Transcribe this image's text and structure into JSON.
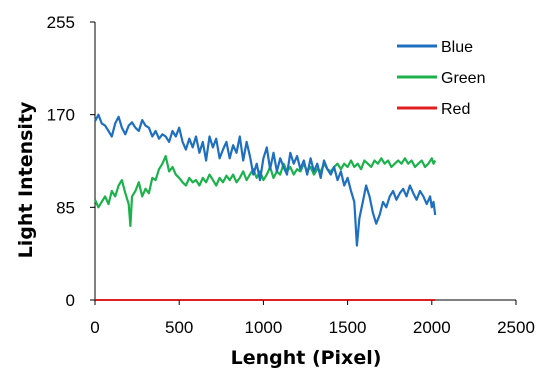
{
  "chart_data": {
    "type": "line",
    "title": "",
    "xlabel": "Lenght (Pixel)",
    "ylabel": "Light Intensity",
    "xlim": [
      0,
      2500
    ],
    "ylim": [
      0,
      255
    ],
    "x_ticks": [
      "0",
      "500",
      "1000",
      "1500",
      "2000",
      "2500"
    ],
    "y_ticks": [
      "0",
      "85",
      "170",
      "255"
    ],
    "grid": false,
    "legend_position": "top-right",
    "series": [
      {
        "name": "Blue",
        "color": "#1f6fc0",
        "points": [
          [
            0,
            164
          ],
          [
            20,
            170
          ],
          [
            40,
            162
          ],
          [
            60,
            160
          ],
          [
            80,
            155
          ],
          [
            100,
            150
          ],
          [
            120,
            162
          ],
          [
            140,
            168
          ],
          [
            160,
            158
          ],
          [
            180,
            152
          ],
          [
            200,
            160
          ],
          [
            220,
            163
          ],
          [
            240,
            158
          ],
          [
            260,
            155
          ],
          [
            280,
            165
          ],
          [
            300,
            160
          ],
          [
            320,
            158
          ],
          [
            340,
            150
          ],
          [
            360,
            155
          ],
          [
            380,
            148
          ],
          [
            400,
            152
          ],
          [
            420,
            150
          ],
          [
            440,
            145
          ],
          [
            460,
            155
          ],
          [
            480,
            150
          ],
          [
            500,
            158
          ],
          [
            520,
            145
          ],
          [
            540,
            138
          ],
          [
            560,
            148
          ],
          [
            580,
            140
          ],
          [
            600,
            150
          ],
          [
            620,
            135
          ],
          [
            640,
            145
          ],
          [
            660,
            128
          ],
          [
            680,
            150
          ],
          [
            700,
            140
          ],
          [
            720,
            148
          ],
          [
            740,
            130
          ],
          [
            760,
            138
          ],
          [
            780,
            145
          ],
          [
            800,
            130
          ],
          [
            820,
            142
          ],
          [
            840,
            135
          ],
          [
            860,
            150
          ],
          [
            880,
            128
          ],
          [
            900,
            145
          ],
          [
            920,
            132
          ],
          [
            940,
            115
          ],
          [
            960,
            125
          ],
          [
            980,
            110
          ],
          [
            1000,
            130
          ],
          [
            1020,
            140
          ],
          [
            1040,
            120
          ],
          [
            1060,
            135
          ],
          [
            1080,
            118
          ],
          [
            1100,
            130
          ],
          [
            1120,
            122
          ],
          [
            1140,
            115
          ],
          [
            1160,
            135
          ],
          [
            1180,
            125
          ],
          [
            1200,
            132
          ],
          [
            1220,
            120
          ],
          [
            1240,
            128
          ],
          [
            1260,
            115
          ],
          [
            1280,
            130
          ],
          [
            1300,
            118
          ],
          [
            1320,
            125
          ],
          [
            1340,
            112
          ],
          [
            1360,
            128
          ],
          [
            1380,
            120
          ],
          [
            1400,
            115
          ],
          [
            1420,
            122
          ],
          [
            1440,
            110
          ],
          [
            1460,
            118
          ],
          [
            1480,
            105
          ],
          [
            1500,
            112
          ],
          [
            1520,
            100
          ],
          [
            1540,
            90
          ],
          [
            1555,
            50
          ],
          [
            1570,
            75
          ],
          [
            1590,
            90
          ],
          [
            1610,
            105
          ],
          [
            1630,
            95
          ],
          [
            1650,
            80
          ],
          [
            1670,
            70
          ],
          [
            1690,
            78
          ],
          [
            1710,
            90
          ],
          [
            1730,
            85
          ],
          [
            1750,
            95
          ],
          [
            1770,
            100
          ],
          [
            1790,
            92
          ],
          [
            1810,
            98
          ],
          [
            1830,
            102
          ],
          [
            1850,
            95
          ],
          [
            1870,
            105
          ],
          [
            1890,
            98
          ],
          [
            1910,
            92
          ],
          [
            1930,
            100
          ],
          [
            1950,
            95
          ],
          [
            1970,
            88
          ],
          [
            1990,
            95
          ],
          [
            2000,
            85
          ],
          [
            2010,
            90
          ],
          [
            2020,
            78
          ]
        ]
      },
      {
        "name": "Green",
        "color": "#1cb24b",
        "points": [
          [
            0,
            92
          ],
          [
            20,
            85
          ],
          [
            40,
            90
          ],
          [
            60,
            95
          ],
          [
            80,
            88
          ],
          [
            100,
            100
          ],
          [
            120,
            95
          ],
          [
            140,
            105
          ],
          [
            160,
            110
          ],
          [
            180,
            98
          ],
          [
            200,
            88
          ],
          [
            210,
            68
          ],
          [
            220,
            95
          ],
          [
            240,
            100
          ],
          [
            260,
            108
          ],
          [
            280,
            95
          ],
          [
            300,
            102
          ],
          [
            320,
            98
          ],
          [
            340,
            112
          ],
          [
            360,
            110
          ],
          [
            380,
            120
          ],
          [
            400,
            125
          ],
          [
            420,
            132
          ],
          [
            440,
            118
          ],
          [
            460,
            122
          ],
          [
            480,
            115
          ],
          [
            500,
            112
          ],
          [
            520,
            108
          ],
          [
            540,
            105
          ],
          [
            560,
            112
          ],
          [
            580,
            108
          ],
          [
            600,
            110
          ],
          [
            620,
            105
          ],
          [
            640,
            112
          ],
          [
            660,
            108
          ],
          [
            680,
            115
          ],
          [
            700,
            110
          ],
          [
            720,
            105
          ],
          [
            740,
            112
          ],
          [
            760,
            108
          ],
          [
            780,
            114
          ],
          [
            800,
            110
          ],
          [
            820,
            115
          ],
          [
            840,
            108
          ],
          [
            860,
            112
          ],
          [
            880,
            118
          ],
          [
            900,
            110
          ],
          [
            920,
            115
          ],
          [
            940,
            120
          ],
          [
            960,
            112
          ],
          [
            980,
            118
          ],
          [
            1000,
            110
          ],
          [
            1020,
            115
          ],
          [
            1040,
            122
          ],
          [
            1060,
            112
          ],
          [
            1080,
            118
          ],
          [
            1100,
            115
          ],
          [
            1120,
            125
          ],
          [
            1140,
            118
          ],
          [
            1160,
            122
          ],
          [
            1180,
            115
          ],
          [
            1200,
            120
          ],
          [
            1220,
            118
          ],
          [
            1240,
            125
          ],
          [
            1260,
            118
          ],
          [
            1280,
            122
          ],
          [
            1300,
            115
          ],
          [
            1320,
            120
          ],
          [
            1340,
            118
          ],
          [
            1360,
            125
          ],
          [
            1380,
            120
          ],
          [
            1400,
            118
          ],
          [
            1420,
            122
          ],
          [
            1440,
            125
          ],
          [
            1460,
            120
          ],
          [
            1480,
            125
          ],
          [
            1500,
            122
          ],
          [
            1520,
            128
          ],
          [
            1540,
            122
          ],
          [
            1560,
            125
          ],
          [
            1580,
            120
          ],
          [
            1600,
            128
          ],
          [
            1620,
            125
          ],
          [
            1640,
            122
          ],
          [
            1660,
            128
          ],
          [
            1680,
            125
          ],
          [
            1700,
            130
          ],
          [
            1720,
            125
          ],
          [
            1740,
            128
          ],
          [
            1760,
            122
          ],
          [
            1780,
            125
          ],
          [
            1800,
            128
          ],
          [
            1820,
            125
          ],
          [
            1840,
            130
          ],
          [
            1860,
            125
          ],
          [
            1880,
            128
          ],
          [
            1900,
            122
          ],
          [
            1920,
            125
          ],
          [
            1940,
            128
          ],
          [
            1960,
            122
          ],
          [
            1980,
            125
          ],
          [
            2000,
            130
          ],
          [
            2010,
            125
          ],
          [
            2020,
            128
          ]
        ]
      },
      {
        "name": "Red",
        "color": "#e02020",
        "points": [
          [
            0,
            0
          ],
          [
            2020,
            0
          ]
        ]
      }
    ]
  }
}
